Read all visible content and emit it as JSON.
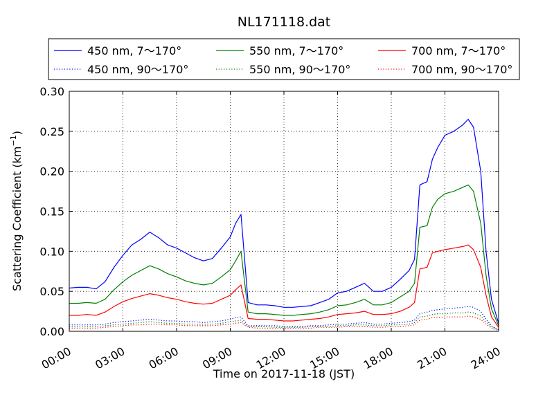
{
  "chart_data": {
    "type": "line",
    "title": "NL171118.dat",
    "xlabel": "Time on 2017-11-18 (JST)",
    "ylabel": "Scattering Coefficient (km",
    "ylabel_exponent": "−1",
    "ylabel_close": ")",
    "xlim": [
      0,
      24
    ],
    "ylim": [
      0,
      0.3
    ],
    "grid": true,
    "legend_position": "top",
    "x_ticks": [
      "00:00",
      "03:00",
      "06:00",
      "09:00",
      "12:00",
      "15:00",
      "18:00",
      "21:00",
      "24:00"
    ],
    "y_ticks": [
      "0.00",
      "0.05",
      "0.10",
      "0.15",
      "0.20",
      "0.25",
      "0.30"
    ],
    "x": [
      0,
      0.5,
      1,
      1.5,
      2,
      2.5,
      3,
      3.5,
      4,
      4.5,
      5,
      5.5,
      6,
      6.5,
      7,
      7.5,
      8,
      8.5,
      9,
      9.3,
      9.6,
      10,
      10.5,
      11,
      11.5,
      12,
      12.5,
      13,
      13.5,
      14,
      14.5,
      15,
      15.5,
      16,
      16.5,
      17,
      17.5,
      18,
      18.5,
      19,
      19.3,
      19.6,
      20,
      20.3,
      20.6,
      21,
      21.5,
      22,
      22.3,
      22.6,
      23,
      23.3,
      23.6,
      24
    ],
    "series": [
      {
        "name": "450 nm, 7～170°",
        "color": "#0000ff",
        "style": "solid",
        "values": [
          0.054,
          0.055,
          0.055,
          0.053,
          0.062,
          0.08,
          0.095,
          0.108,
          0.115,
          0.124,
          0.117,
          0.108,
          0.104,
          0.098,
          0.092,
          0.088,
          0.091,
          0.104,
          0.118,
          0.135,
          0.146,
          0.036,
          0.033,
          0.033,
          0.032,
          0.03,
          0.03,
          0.031,
          0.032,
          0.036,
          0.04,
          0.048,
          0.05,
          0.055,
          0.06,
          0.05,
          0.05,
          0.055,
          0.065,
          0.076,
          0.09,
          0.183,
          0.187,
          0.215,
          0.23,
          0.245,
          0.25,
          0.258,
          0.265,
          0.255,
          0.2,
          0.1,
          0.04,
          0.01
        ]
      },
      {
        "name": "550 nm, 7～170°",
        "color": "#008000",
        "style": "solid",
        "values": [
          0.035,
          0.035,
          0.036,
          0.035,
          0.04,
          0.052,
          0.062,
          0.07,
          0.076,
          0.082,
          0.078,
          0.072,
          0.068,
          0.063,
          0.06,
          0.058,
          0.06,
          0.068,
          0.077,
          0.088,
          0.1,
          0.024,
          0.022,
          0.022,
          0.021,
          0.02,
          0.02,
          0.021,
          0.022,
          0.024,
          0.027,
          0.032,
          0.033,
          0.036,
          0.04,
          0.033,
          0.033,
          0.036,
          0.043,
          0.05,
          0.06,
          0.13,
          0.132,
          0.155,
          0.165,
          0.172,
          0.175,
          0.18,
          0.183,
          0.175,
          0.135,
          0.07,
          0.028,
          0.007
        ]
      },
      {
        "name": "700 nm, 7～170°",
        "color": "#ff0000",
        "style": "solid",
        "values": [
          0.02,
          0.02,
          0.021,
          0.02,
          0.024,
          0.031,
          0.037,
          0.041,
          0.044,
          0.047,
          0.045,
          0.042,
          0.04,
          0.037,
          0.035,
          0.034,
          0.035,
          0.04,
          0.045,
          0.052,
          0.058,
          0.016,
          0.015,
          0.015,
          0.014,
          0.013,
          0.013,
          0.014,
          0.015,
          0.016,
          0.018,
          0.021,
          0.022,
          0.023,
          0.025,
          0.021,
          0.021,
          0.022,
          0.025,
          0.03,
          0.036,
          0.078,
          0.08,
          0.098,
          0.1,
          0.102,
          0.104,
          0.106,
          0.108,
          0.102,
          0.08,
          0.045,
          0.018,
          0.005
        ]
      },
      {
        "name": "450 nm, 90～170°",
        "color": "#0000ff",
        "style": "dotted",
        "values": [
          0.008,
          0.008,
          0.008,
          0.008,
          0.009,
          0.011,
          0.012,
          0.013,
          0.014,
          0.015,
          0.014,
          0.013,
          0.013,
          0.012,
          0.012,
          0.011,
          0.012,
          0.013,
          0.015,
          0.017,
          0.018,
          0.007,
          0.007,
          0.007,
          0.007,
          0.006,
          0.006,
          0.006,
          0.007,
          0.007,
          0.008,
          0.009,
          0.009,
          0.01,
          0.011,
          0.009,
          0.009,
          0.01,
          0.011,
          0.012,
          0.014,
          0.022,
          0.024,
          0.026,
          0.027,
          0.028,
          0.029,
          0.03,
          0.031,
          0.03,
          0.025,
          0.015,
          0.007,
          0.002
        ]
      },
      {
        "name": "550 nm, 90～170°",
        "color": "#008000",
        "style": "dotted",
        "values": [
          0.006,
          0.006,
          0.006,
          0.006,
          0.007,
          0.008,
          0.009,
          0.01,
          0.011,
          0.012,
          0.011,
          0.01,
          0.01,
          0.009,
          0.009,
          0.009,
          0.009,
          0.01,
          0.012,
          0.013,
          0.014,
          0.006,
          0.006,
          0.006,
          0.005,
          0.005,
          0.005,
          0.005,
          0.006,
          0.006,
          0.006,
          0.007,
          0.007,
          0.008,
          0.008,
          0.007,
          0.007,
          0.008,
          0.008,
          0.009,
          0.011,
          0.018,
          0.019,
          0.021,
          0.022,
          0.022,
          0.023,
          0.023,
          0.024,
          0.023,
          0.019,
          0.012,
          0.005,
          0.002
        ]
      },
      {
        "name": "700 nm, 90～170°",
        "color": "#ff0000",
        "style": "dotted",
        "values": [
          0.004,
          0.004,
          0.004,
          0.004,
          0.005,
          0.006,
          0.007,
          0.008,
          0.008,
          0.009,
          0.009,
          0.008,
          0.008,
          0.007,
          0.007,
          0.007,
          0.007,
          0.008,
          0.009,
          0.01,
          0.011,
          0.005,
          0.004,
          0.004,
          0.004,
          0.004,
          0.004,
          0.004,
          0.004,
          0.005,
          0.005,
          0.005,
          0.006,
          0.006,
          0.006,
          0.005,
          0.005,
          0.006,
          0.006,
          0.007,
          0.008,
          0.014,
          0.015,
          0.017,
          0.017,
          0.018,
          0.018,
          0.018,
          0.019,
          0.018,
          0.015,
          0.009,
          0.004,
          0.001
        ]
      }
    ]
  }
}
